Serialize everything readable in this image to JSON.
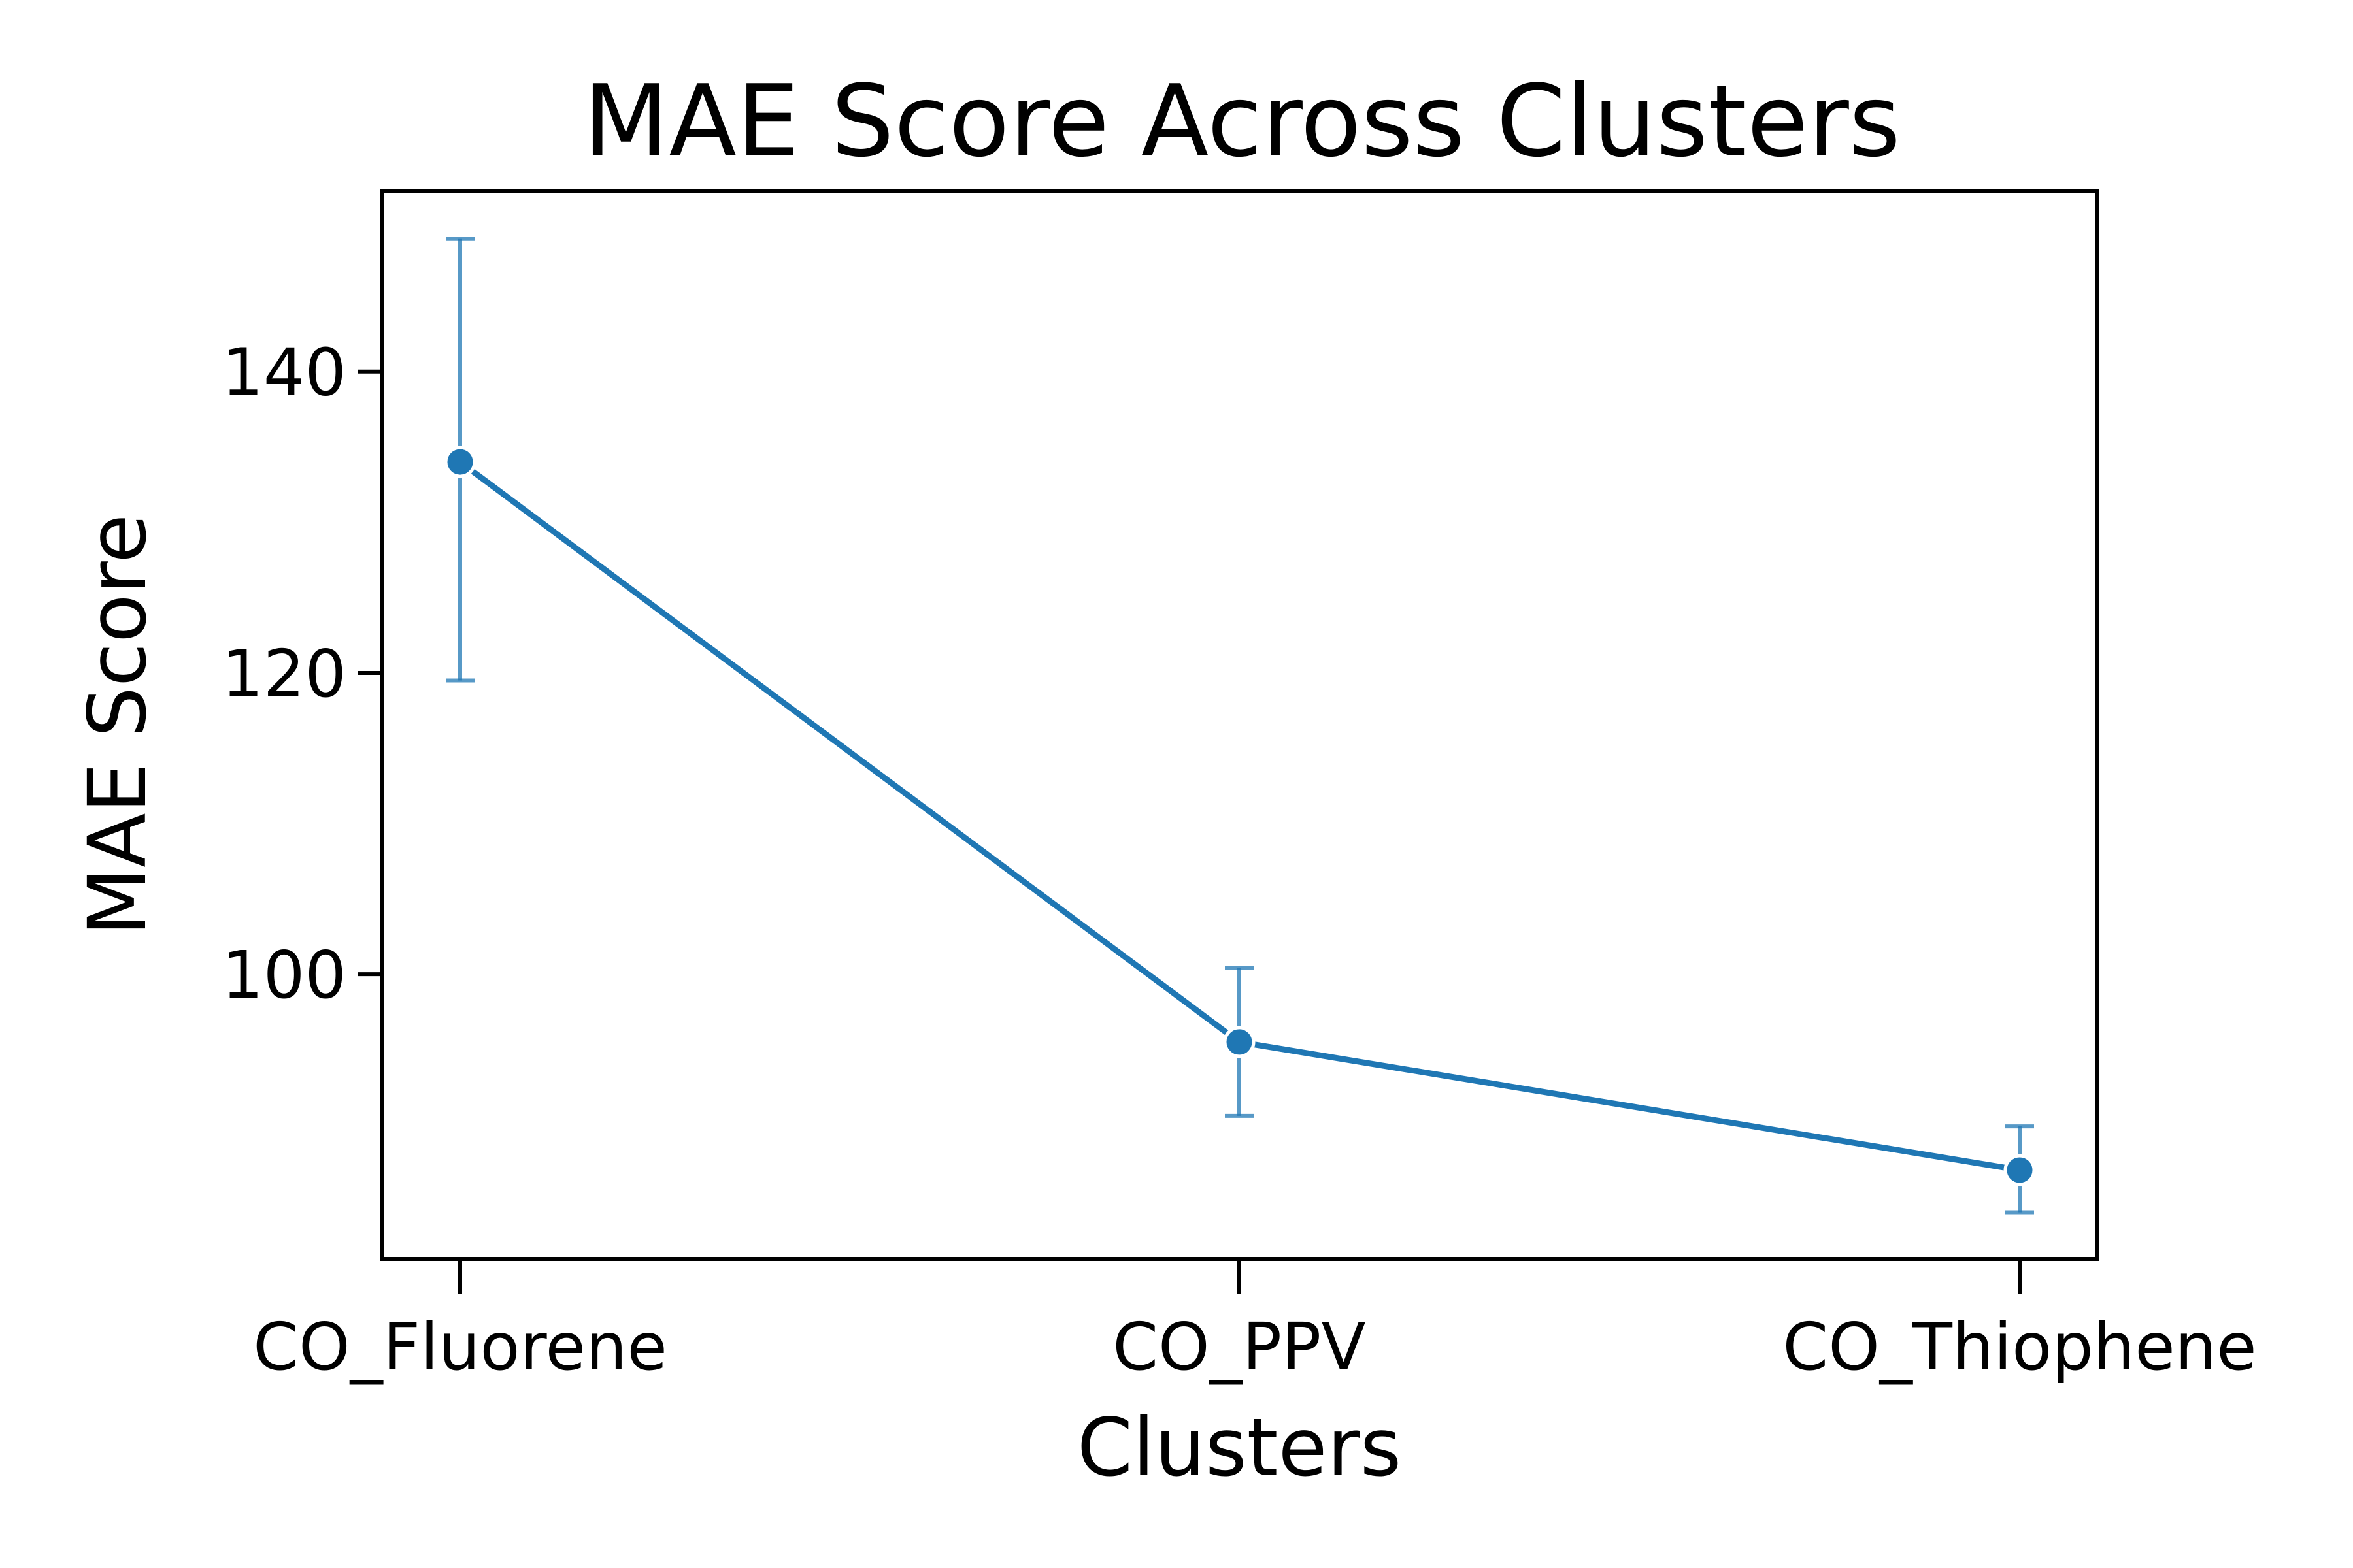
{
  "chart_data": {
    "type": "line",
    "title": "MAE Score Across Clusters",
    "xlabel": "Clusters",
    "ylabel": "MAE Score",
    "categories": [
      "CO_Fluorene",
      "CO_PPV",
      "CO_Thiophene"
    ],
    "series": [
      {
        "values": [
          134.0,
          95.5,
          87.0
        ],
        "error_low": [
          119.5,
          90.6,
          84.2
        ],
        "error_high": [
          148.8,
          100.4,
          89.9
        ],
        "color": "#1f77b4"
      }
    ],
    "yticks": [
      100,
      120,
      140
    ],
    "ylim": [
      81.1,
      152.0
    ],
    "grid": false
  }
}
